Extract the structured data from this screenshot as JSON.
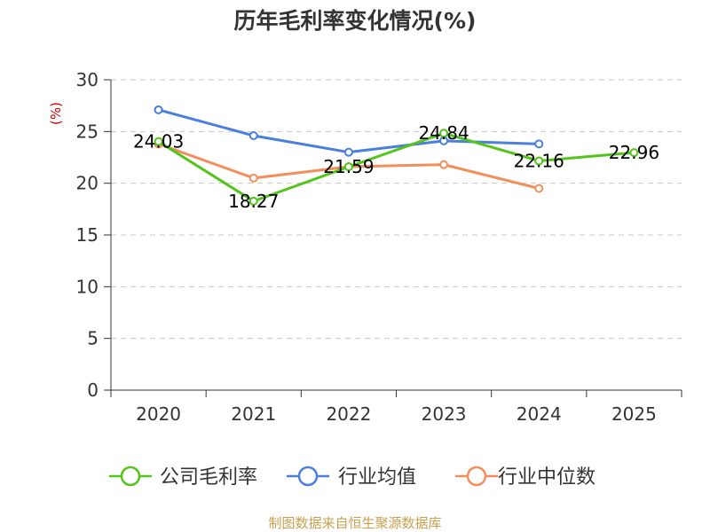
{
  "chart_data": {
    "type": "line",
    "title": "历年毛利率变化情况(%)",
    "ylabel": "(%)",
    "xlabel": "",
    "categories": [
      "2020",
      "2021",
      "2022",
      "2023",
      "2024",
      "2025"
    ],
    "ylim": [
      0,
      30
    ],
    "yticks": [
      0,
      5,
      10,
      15,
      20,
      25,
      30
    ],
    "grid": true,
    "legend_position": "bottom",
    "series": [
      {
        "name": "公司毛利率",
        "color": "#52c41a",
        "values": [
          24.03,
          18.27,
          21.59,
          24.84,
          22.16,
          22.96
        ],
        "labels": [
          "24.03",
          "18.27",
          "21.59",
          "24.84",
          "22.16",
          "22.96"
        ]
      },
      {
        "name": "行业均值",
        "color": "#4a7fdc",
        "values": [
          27.1,
          24.6,
          23.0,
          24.1,
          23.8,
          null
        ]
      },
      {
        "name": "行业中位数",
        "color": "#f28e5b",
        "values": [
          23.8,
          20.5,
          21.6,
          21.8,
          19.5,
          null
        ]
      }
    ],
    "unit_color": "#d40000",
    "source": "制图数据来自恒生聚源数据库",
    "source_color": "#c8a050"
  }
}
